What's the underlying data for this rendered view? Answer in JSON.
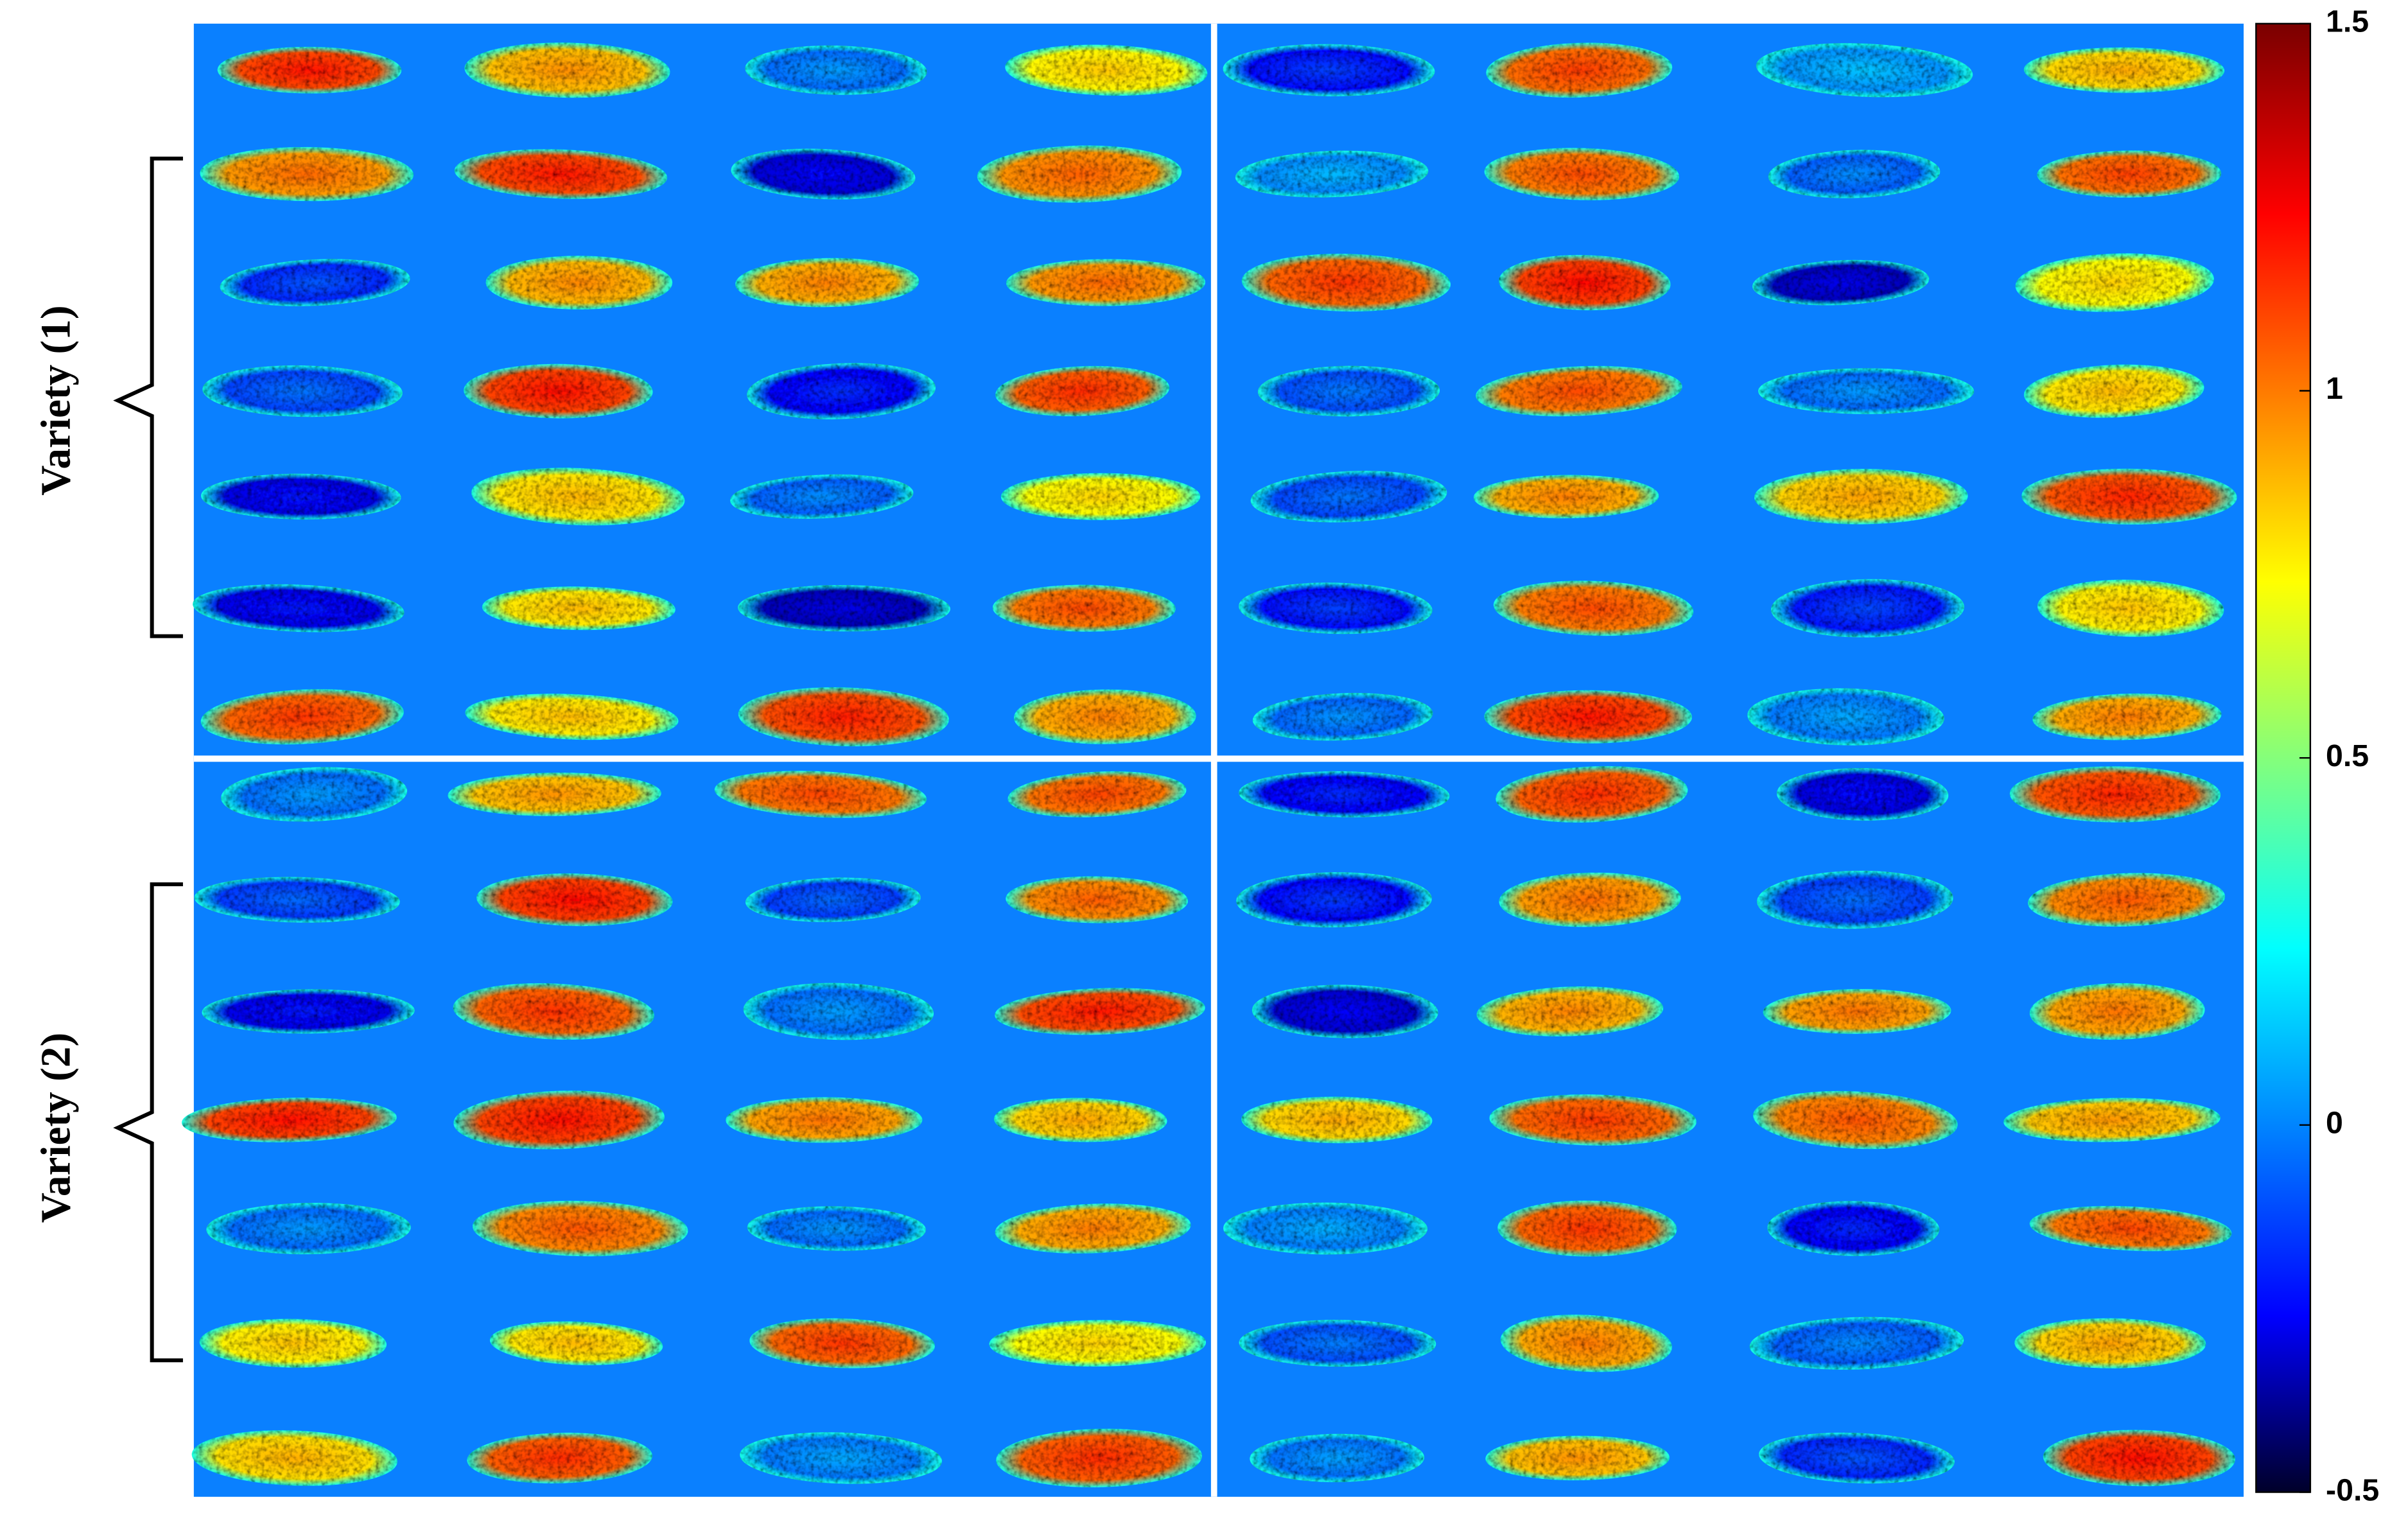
{
  "labels": [
    "Variety (1)",
    "Variety (2)"
  ],
  "colorbar": {
    "lim": [
      -0.5,
      1.5
    ],
    "ticks": [
      1.5,
      1,
      0.5,
      0,
      -0.5
    ]
  }
}
